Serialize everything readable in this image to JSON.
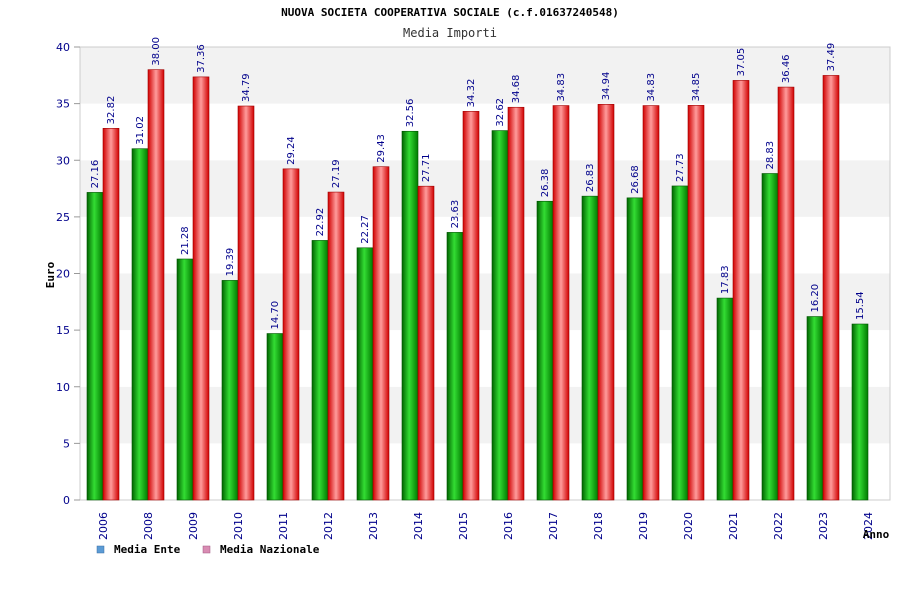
{
  "chart_data": {
    "type": "bar",
    "title": "NUOVA SOCIETA COOPERATIVA SOCIALE (c.f.01637240548)",
    "subtitle": "Media Importi",
    "xlabel": "Anno",
    "ylabel": "Euro",
    "ylim": [
      0,
      40
    ],
    "yticks": [
      0,
      5,
      10,
      15,
      20,
      25,
      30,
      35,
      40
    ],
    "categories": [
      "2006",
      "2008",
      "2009",
      "2010",
      "2011",
      "2012",
      "2013",
      "2014",
      "2015",
      "2016",
      "2017",
      "2018",
      "2019",
      "2020",
      "2021",
      "2022",
      "2023",
      "2024"
    ],
    "series": [
      {
        "name": "Media Ente",
        "color": "#00a000",
        "values": [
          27.16,
          31.02,
          21.28,
          19.39,
          14.7,
          22.92,
          22.27,
          32.56,
          23.63,
          32.62,
          26.38,
          26.83,
          26.68,
          27.73,
          17.83,
          28.83,
          16.2,
          15.54
        ],
        "labels": [
          "27.16",
          "31.02",
          "21.28",
          "19.39",
          "14.70",
          "22.92",
          "22.27",
          "32.56",
          "23.63",
          "32.62",
          "26.38",
          "26.83",
          "26.68",
          "27.73",
          "17.83",
          "28.83",
          "16.20",
          "15.54"
        ]
      },
      {
        "name": "Media Nazionale",
        "color": "#e00000",
        "values": [
          32.82,
          38.0,
          37.36,
          34.79,
          29.24,
          27.19,
          29.43,
          27.71,
          34.32,
          34.68,
          34.83,
          34.94,
          34.83,
          34.85,
          37.05,
          36.46,
          37.49,
          null
        ],
        "labels": [
          "32.82",
          "38.00",
          "37.36",
          "34.79",
          "29.24",
          "27.19",
          "29.43",
          "27.71",
          "34.32",
          "34.68",
          "34.83",
          "34.94",
          "34.83",
          "34.85",
          "37.05",
          "36.46",
          "37.49",
          null
        ]
      }
    ],
    "legend": [
      {
        "label": "Media Ente",
        "swatch": "#5b9bd5"
      },
      {
        "label": "Media Nazionale",
        "swatch": "#d98cb3"
      }
    ],
    "grid": true
  }
}
